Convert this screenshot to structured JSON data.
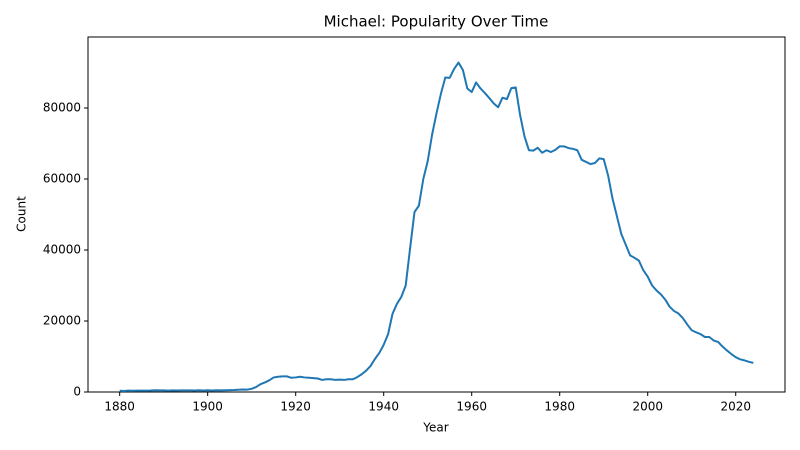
{
  "chart_data": {
    "type": "line",
    "title": "Michael: Popularity Over Time",
    "x_label": "Year",
    "y_label": "Count",
    "color": "#1f77b4",
    "x": [
      1880,
      1881,
      1882,
      1883,
      1884,
      1885,
      1886,
      1887,
      1888,
      1889,
      1890,
      1891,
      1892,
      1893,
      1894,
      1895,
      1896,
      1897,
      1898,
      1899,
      1900,
      1901,
      1902,
      1903,
      1904,
      1905,
      1906,
      1907,
      1908,
      1909,
      1910,
      1911,
      1912,
      1913,
      1914,
      1915,
      1916,
      1917,
      1918,
      1919,
      1920,
      1921,
      1922,
      1923,
      1924,
      1925,
      1926,
      1927,
      1928,
      1929,
      1930,
      1931,
      1932,
      1933,
      1934,
      1935,
      1936,
      1937,
      1938,
      1939,
      1940,
      1941,
      1942,
      1943,
      1944,
      1945,
      1946,
      1947,
      1948,
      1949,
      1950,
      1951,
      1952,
      1953,
      1954,
      1955,
      1956,
      1957,
      1958,
      1959,
      1960,
      1961,
      1962,
      1963,
      1964,
      1965,
      1966,
      1967,
      1968,
      1969,
      1970,
      1971,
      1972,
      1973,
      1974,
      1975,
      1976,
      1977,
      1978,
      1979,
      1980,
      1981,
      1982,
      1983,
      1984,
      1985,
      1986,
      1987,
      1988,
      1989,
      1990,
      1991,
      1992,
      1993,
      1994,
      1995,
      1996,
      1997,
      1998,
      1999,
      2000,
      2001,
      2002,
      2003,
      2004,
      2005,
      2006,
      2007,
      2008,
      2009,
      2010,
      2011,
      2012,
      2013,
      2014,
      2015,
      2016,
      2017,
      2018,
      2019,
      2020,
      2021,
      2022,
      2023,
      2024
    ],
    "values": [
      354,
      298,
      381,
      348,
      386,
      383,
      375,
      411,
      500,
      450,
      441,
      393,
      472,
      434,
      463,
      461,
      454,
      424,
      476,
      434,
      505,
      436,
      481,
      453,
      501,
      539,
      556,
      637,
      720,
      685,
      900,
      1400,
      2200,
      2700,
      3300,
      4100,
      4300,
      4400,
      4400,
      4000,
      4100,
      4300,
      4100,
      4000,
      3900,
      3800,
      3400,
      3600,
      3600,
      3400,
      3500,
      3400,
      3600,
      3600,
      4200,
      5000,
      6000,
      7300,
      9300,
      11000,
      13300,
      16300,
      22000,
      24800,
      26800,
      30000,
      40500,
      50700,
      52500,
      60000,
      65000,
      72500,
      78500,
      84000,
      88600,
      88500,
      91000,
      92800,
      90700,
      85500,
      84500,
      87200,
      85500,
      84200,
      82800,
      81300,
      80200,
      82900,
      82500,
      85600,
      85800,
      78000,
      72000,
      68100,
      68000,
      68800,
      67400,
      68100,
      67600,
      68200,
      69200,
      69200,
      68700,
      68500,
      68100,
      65400,
      64800,
      64200,
      64500,
      65800,
      65600,
      61000,
      54500,
      49500,
      44500,
      41500,
      38500,
      37800,
      37000,
      34300,
      32500,
      30000,
      28600,
      27500,
      26000,
      24000,
      22800,
      22100,
      20800,
      19000,
      17400,
      16800,
      16300,
      15500,
      15500,
      14500,
      14100,
      12800,
      11700,
      10700,
      9800,
      9200,
      8900,
      8500,
      8200
    ],
    "xlim": [
      1872.8,
      2031.2
    ],
    "xticks": [
      1880,
      1900,
      1920,
      1940,
      1960,
      1980,
      2000,
      2020
    ],
    "ylim": [
      0,
      100000
    ],
    "yticks": [
      0,
      20000,
      40000,
      60000,
      80000
    ]
  }
}
